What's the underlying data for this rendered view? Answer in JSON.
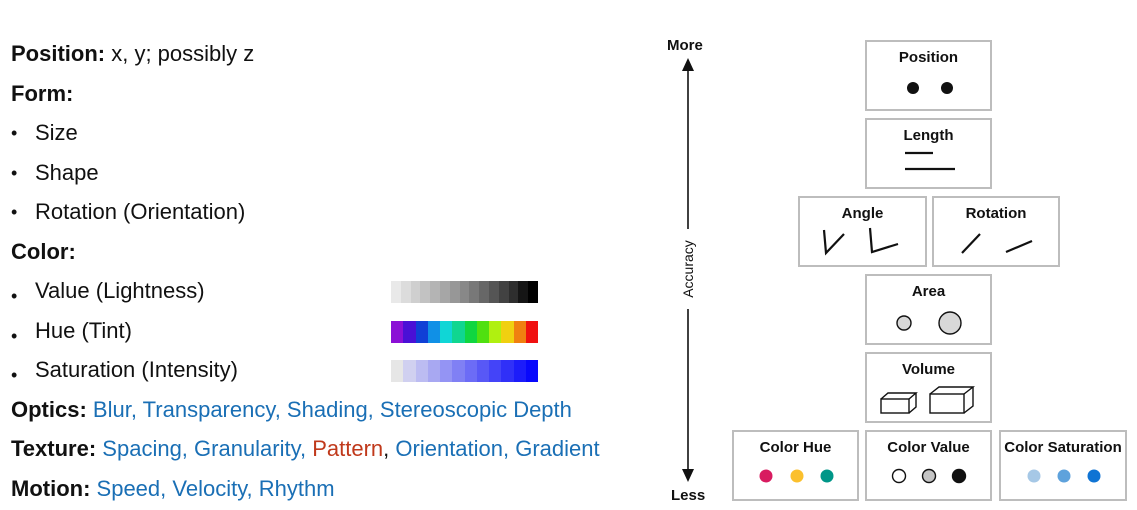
{
  "left_list": {
    "position": {
      "label": "Position:",
      "text": "x, y; possibly z"
    },
    "form": {
      "label": "Form:",
      "items": [
        "Size",
        "Shape",
        "Rotation (Orientation)"
      ]
    },
    "color": {
      "label": "Color:",
      "items": [
        "Value (Lightness)",
        "Hue (Tint)",
        "Saturation (Intensity)"
      ],
      "value_swatches": [
        "#e9e9e9",
        "#dcdcdc",
        "#cfcfcf",
        "#c2c2c2",
        "#b4b4b4",
        "#a6a6a6",
        "#979797",
        "#888888",
        "#787878",
        "#676767",
        "#555555",
        "#424242",
        "#2e2e2e",
        "#151515",
        "#000000"
      ],
      "hue_swatches": [
        "#8b10d6",
        "#4a10d6",
        "#1040d6",
        "#1090e6",
        "#10d6d6",
        "#10d690",
        "#10d640",
        "#50e010",
        "#b0f010",
        "#f0d010",
        "#f08010",
        "#f01010"
      ],
      "saturation_swatches": [
        "#e6e6e6",
        "#d0d0f0",
        "#bcbcf2",
        "#a8a8f2",
        "#9494f4",
        "#8080f4",
        "#6c6cf6",
        "#5858f6",
        "#4444f8",
        "#3030f8",
        "#1c1cfa",
        "#0808fc"
      ]
    },
    "optics": {
      "label": "Optics:",
      "text": "Blur, Transparency, Shading, Stereoscopic Depth"
    },
    "texture": {
      "label": "Texture:",
      "part1": "Spacing, Granularity, ",
      "pattern": "Pattern",
      "comma": ",",
      "part2": " Orientation, Gradient"
    },
    "motion": {
      "label": "Motion:",
      "text": "Speed, Velocity, Rhythm"
    }
  },
  "axis": {
    "top": "More",
    "bottom": "Less",
    "label": "Accuracy"
  },
  "boxes": {
    "position": "Position",
    "length": "Length",
    "angle": "Angle",
    "rotation": "Rotation",
    "area": "Area",
    "volume": "Volume",
    "color_hue": "Color Hue",
    "color_value": "Color Value",
    "color_saturation": "Color Saturation"
  },
  "colors": {
    "text_blue": "#1a6fb5",
    "pattern_red": "#c0391b",
    "hue_dots": [
      "#d81b60",
      "#fbc02d",
      "#009688"
    ],
    "saturation_dots": [
      "#a6c8e6",
      "#5ea2dc",
      "#0f74d4"
    ]
  }
}
